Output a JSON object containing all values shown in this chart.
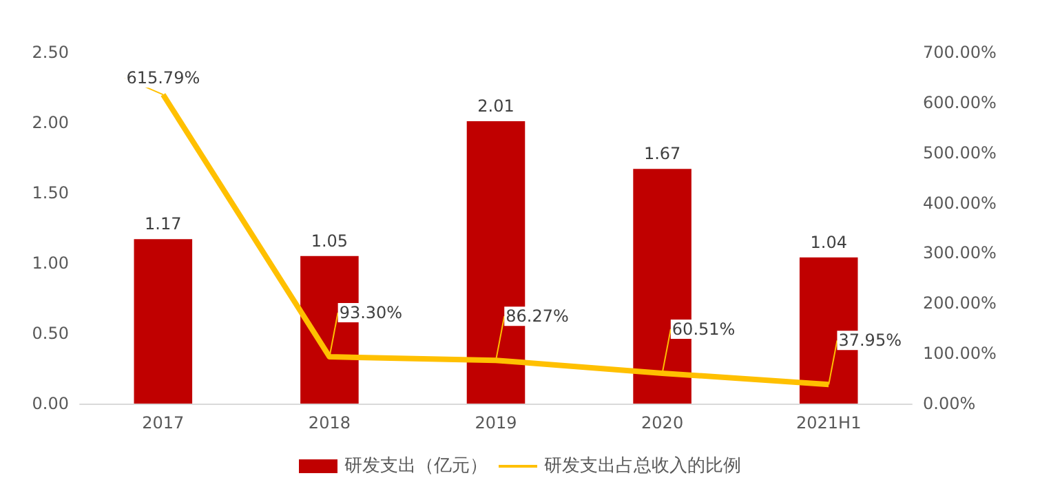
{
  "chart_data": {
    "type": "bar",
    "categories": [
      "2017",
      "2018",
      "2019",
      "2020",
      "2021H1"
    ],
    "series": [
      {
        "name": "研发支出（亿元）",
        "color": "#c00000",
        "values": [
          1.17,
          1.05,
          2.01,
          1.67,
          1.04
        ],
        "value_labels": [
          "1.17",
          "1.05",
          "2.01",
          "1.67",
          "1.04"
        ]
      },
      {
        "name": "研发支出占总收入的比例",
        "type": "line",
        "axis": "y2",
        "color": "#ffc000",
        "values": [
          615.79,
          93.3,
          86.27,
          60.51,
          37.95
        ],
        "value_labels": [
          "615.79%",
          "93.30%",
          "86.27%",
          "60.51%",
          "37.95%"
        ]
      }
    ],
    "ylim": [
      0,
      2.5
    ],
    "yticks": [
      {
        "value": 0,
        "label": "0.00"
      },
      {
        "value": 0.5,
        "label": "0.50"
      },
      {
        "value": 1,
        "label": "1.00"
      },
      {
        "value": 1.5,
        "label": "1.50"
      },
      {
        "value": 2,
        "label": "2.00"
      },
      {
        "value": 2.5,
        "label": "2.50"
      }
    ],
    "y2lim": [
      0,
      700
    ],
    "y2ticks": [
      {
        "value": 0,
        "label": "0.00%"
      },
      {
        "value": 100,
        "label": "100.00%"
      },
      {
        "value": 200,
        "label": "200.00%"
      },
      {
        "value": 300,
        "label": "300.00%"
      },
      {
        "value": 400,
        "label": "400.00%"
      },
      {
        "value": 500,
        "label": "500.00%"
      },
      {
        "value": 600,
        "label": "600.00%"
      },
      {
        "value": 700,
        "label": "700.00%"
      }
    ],
    "grid": false,
    "legend": "bottom",
    "marker": "none"
  }
}
